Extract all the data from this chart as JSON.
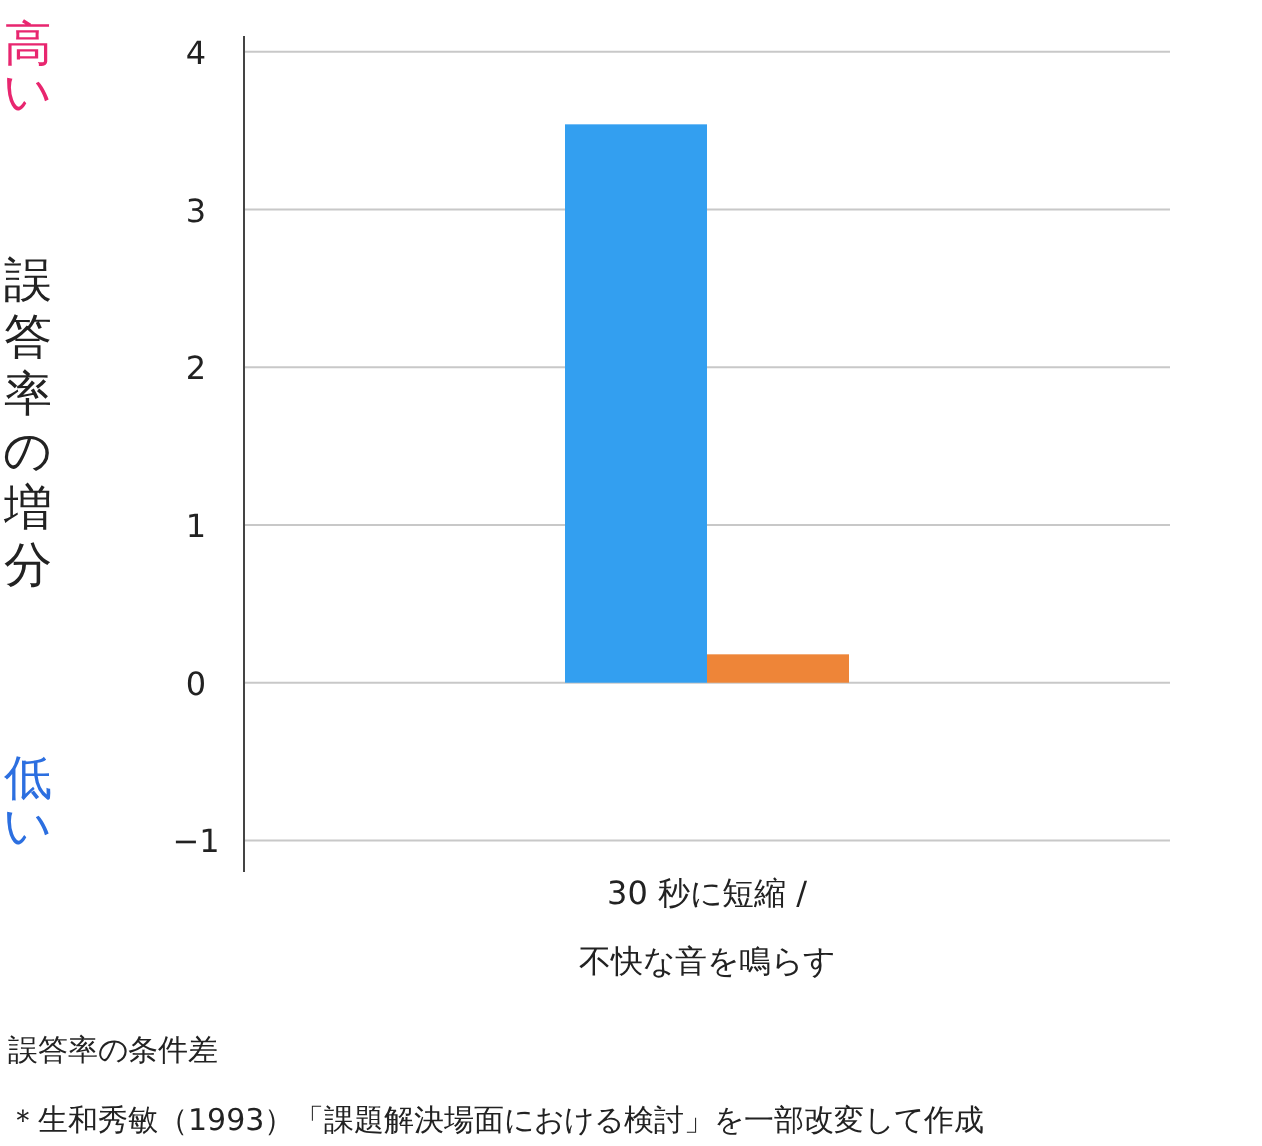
{
  "chart_data": {
    "type": "bar",
    "ylabel": "誤答率の増分",
    "categories": [
      "30 秒に短縮 /\n不快な音を鳴らす"
    ],
    "series": [
      {
        "color": "#339ff0",
        "values": [
          3.54
        ]
      },
      {
        "color": "#ee8538",
        "values": [
          0.18
        ]
      }
    ],
    "ylim": [
      -1.2,
      4.1
    ],
    "yticks": [
      -1,
      0,
      1,
      2,
      3,
      4
    ],
    "grid": "y",
    "annotations": [
      "高い",
      "低い",
      "誤答率の条件差",
      "＊生和秀敏（1993）「課題解決場面における検討」を一部改変して作成"
    ]
  }
}
